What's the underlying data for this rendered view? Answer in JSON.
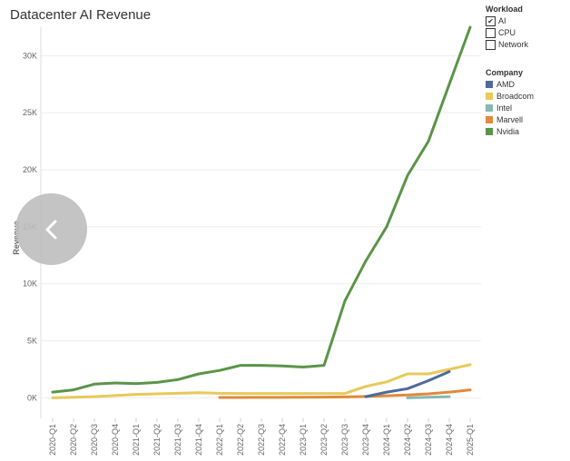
{
  "title": "Datacenter AI Revenue",
  "workload_filter": {
    "title": "Workload",
    "options": [
      {
        "label": "AI",
        "checked": true
      },
      {
        "label": "CPU",
        "checked": false
      },
      {
        "label": "Network",
        "checked": false
      }
    ]
  },
  "company_legend": {
    "title": "Company",
    "items": [
      {
        "label": "AMD",
        "color": "#4e6a9a"
      },
      {
        "label": "Broadcom",
        "color": "#e8c95a"
      },
      {
        "label": "Intel",
        "color": "#85b9b1"
      },
      {
        "label": "Marvell",
        "color": "#e08a3c"
      },
      {
        "label": "Nvidia",
        "color": "#5b9448"
      }
    ]
  },
  "back_button": {
    "icon": "chevron-left-icon"
  },
  "chart_data": {
    "type": "line",
    "title": "Datacenter AI Revenue",
    "xlabel": "",
    "ylabel": "Revenue",
    "ylim": [
      -1800,
      32500
    ],
    "yticks": [
      0,
      5000,
      10000,
      15000,
      20000,
      25000,
      30000
    ],
    "ytick_labels": [
      "0K",
      "5K",
      "10K",
      "15K",
      "20K",
      "25K",
      "30K"
    ],
    "grid": true,
    "categories": [
      "2020-Q1",
      "2020-Q2",
      "2020-Q3",
      "2020-Q4",
      "2021-Q1",
      "2021-Q2",
      "2021-Q3",
      "2021-Q4",
      "2022-Q1",
      "2022-Q2",
      "2022-Q3",
      "2022-Q4",
      "2023-Q1",
      "2023-Q2",
      "2023-Q3",
      "2023-Q4",
      "2024-Q1",
      "2024-Q2",
      "2024-Q3",
      "2024-Q4",
      "2025-Q1"
    ],
    "series": [
      {
        "name": "Broadcom",
        "color": "#e8c95a",
        "values": [
          0,
          50,
          100,
          200,
          300,
          350,
          400,
          450,
          400,
          380,
          380,
          380,
          380,
          380,
          380,
          1000,
          1400,
          2100,
          2100,
          2500,
          2900
        ]
      },
      {
        "name": "Marvell",
        "color": "#e08a3c",
        "values": [
          null,
          null,
          null,
          null,
          null,
          null,
          null,
          null,
          30,
          30,
          40,
          40,
          50,
          60,
          80,
          120,
          180,
          250,
          350,
          500,
          700
        ]
      },
      {
        "name": "Intel",
        "color": "#85b9b1",
        "values": [
          null,
          null,
          null,
          null,
          null,
          null,
          null,
          null,
          null,
          null,
          null,
          null,
          null,
          null,
          null,
          null,
          null,
          0,
          50,
          100,
          null
        ]
      },
      {
        "name": "AMD",
        "color": "#4e6a9a",
        "values": [
          null,
          null,
          null,
          null,
          null,
          null,
          null,
          null,
          null,
          null,
          null,
          null,
          null,
          null,
          null,
          100,
          500,
          800,
          1500,
          2300,
          null
        ]
      },
      {
        "name": "Nvidia",
        "color": "#5b9448",
        "values": [
          500,
          700,
          1200,
          1300,
          1250,
          1350,
          1600,
          2100,
          2400,
          2850,
          2850,
          2800,
          2700,
          2850,
          8500,
          12000,
          15000,
          19500,
          22500,
          27500,
          32500
        ]
      }
    ]
  }
}
